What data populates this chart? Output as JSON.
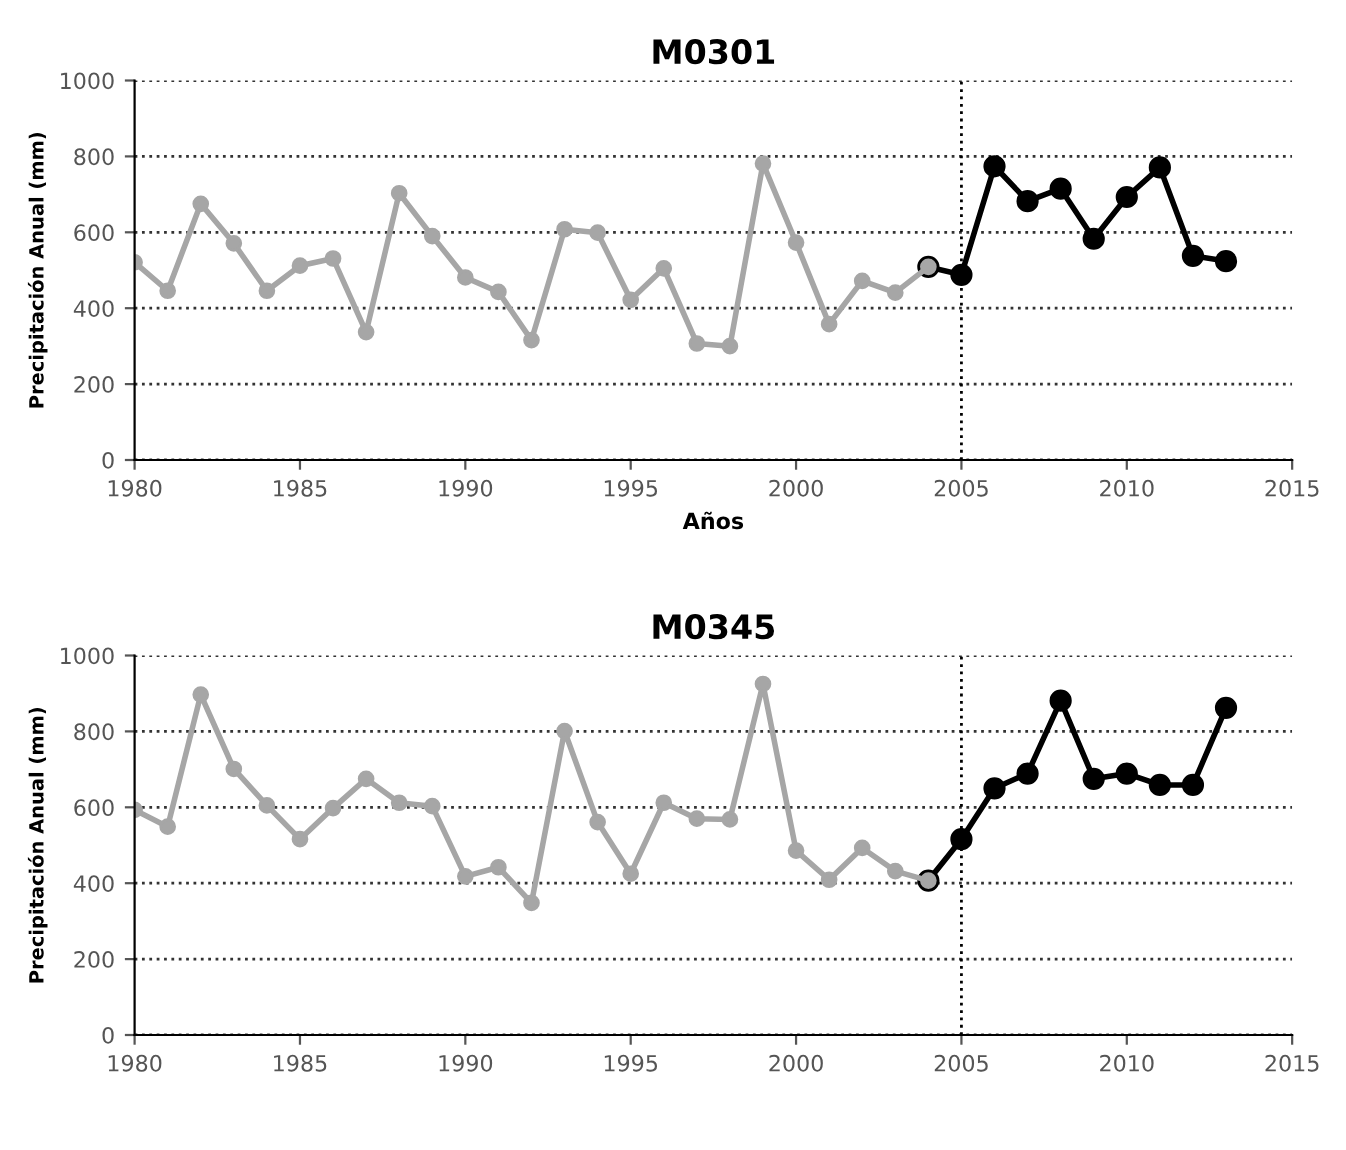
{
  "chart_data": [
    {
      "type": "line",
      "title": "M0301",
      "xlabel": "Años",
      "ylabel": "Precipitación Anual (mm)",
      "marker": "circle",
      "line_style": "solid",
      "grid": "y",
      "xlim": [
        1980,
        2015
      ],
      "xticks": [
        1980,
        1985,
        1990,
        1995,
        2000,
        2005,
        2010,
        2015
      ],
      "ylim": [
        0,
        1000
      ],
      "yticks": [
        0,
        200,
        400,
        600,
        800,
        1000
      ],
      "ref_lines": [
        {
          "axis": "x",
          "value": 2005,
          "color": "#000000",
          "line_style": "dotted"
        }
      ],
      "series": [
        {
          "color": "#000000",
          "x": [
            2004,
            2005,
            2006,
            2007,
            2008,
            2009,
            2010,
            2011,
            2012,
            2013
          ],
          "values": [
            509,
            488,
            774,
            682,
            715,
            583,
            693,
            771,
            538,
            524
          ]
        },
        {
          "color": "#a6a6a6",
          "x": [
            1980,
            1981,
            1982,
            1983,
            1984,
            1985,
            1986,
            1987,
            1988,
            1989,
            1990,
            1991,
            1992,
            1993,
            1994,
            1995,
            1996,
            1997,
            1998,
            1999,
            2000,
            2001,
            2002,
            2003,
            2004
          ],
          "values": [
            521,
            446,
            675,
            571,
            446,
            512,
            531,
            337,
            703,
            590,
            481,
            443,
            316,
            608,
            599,
            422,
            505,
            307,
            300,
            781,
            573,
            358,
            472,
            441,
            509
          ]
        }
      ]
    },
    {
      "type": "line",
      "title": "M0345",
      "ylabel": "Precipitación Anual (mm)",
      "marker": "circle",
      "line_style": "solid",
      "grid": "y",
      "xlim": [
        1980,
        2015
      ],
      "xticks": [
        1980,
        1985,
        1990,
        1995,
        2000,
        2005,
        2010,
        2015
      ],
      "ylim": [
        0,
        1000
      ],
      "yticks": [
        0,
        200,
        400,
        600,
        800,
        1000
      ],
      "ref_lines": [
        {
          "axis": "x",
          "value": 2005,
          "color": "#000000",
          "line_style": "dotted"
        }
      ],
      "series": [
        {
          "color": "#000000",
          "x": [
            2004,
            2005,
            2006,
            2007,
            2008,
            2009,
            2010,
            2011,
            2012,
            2013
          ],
          "values": [
            407,
            516,
            650,
            689,
            881,
            675,
            689,
            659,
            659,
            862
          ]
        },
        {
          "color": "#a6a6a6",
          "x": [
            1980,
            1981,
            1982,
            1983,
            1984,
            1985,
            1986,
            1987,
            1988,
            1989,
            1990,
            1991,
            1992,
            1993,
            1994,
            1995,
            1996,
            1997,
            1998,
            1999,
            2000,
            2001,
            2002,
            2003,
            2004
          ],
          "values": [
            593,
            549,
            897,
            701,
            605,
            516,
            598,
            675,
            612,
            603,
            418,
            442,
            348,
            801,
            561,
            425,
            612,
            570,
            568,
            925,
            486,
            409,
            493,
            432,
            407
          ]
        }
      ]
    }
  ]
}
